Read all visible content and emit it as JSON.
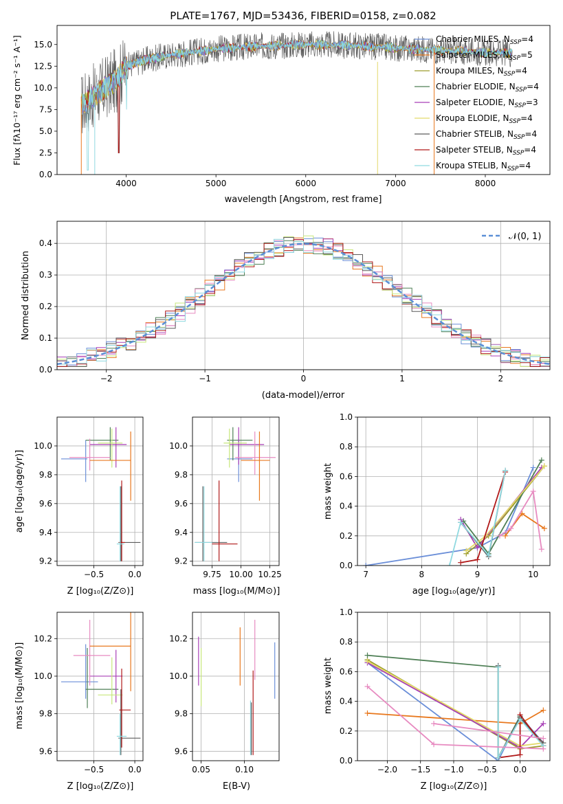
{
  "figure": {
    "title": "PLATE=1767, MJD=53436, FIBERID=0158, z=0.082"
  },
  "colors": [
    "#6a8ed8",
    "#e8771c",
    "#9a9a2a",
    "#4e7f55",
    "#a83fb6",
    "#e3d96a",
    "#5a5a5a",
    "#b01818",
    "#8fd9e0",
    "#e78ac0",
    "#c7e77b"
  ],
  "chart_data": [
    {
      "type": "line",
      "id": "spectrum",
      "title": "PLATE=1767, MJD=53436, FIBERID=0158, z=0.082",
      "xlabel": "wavelength [Angstrom, rest frame]",
      "ylabel": "Flux [fλ10⁻¹⁷ erg cm⁻² s⁻¹ A⁻¹]",
      "xlim": [
        3230,
        8720
      ],
      "ylim": [
        0,
        17.2
      ],
      "xticks": [
        4000,
        5000,
        6000,
        7000,
        8000
      ],
      "yticks": [
        0.0,
        2.5,
        5.0,
        7.5,
        10.0,
        12.5,
        15.0
      ],
      "grid": false,
      "legend_position": "right",
      "legend": [
        {
          "label": "Chabrier MILES, N_SSP=4",
          "color": "#6a8ed8"
        },
        {
          "label": "Salpeter MILES, N_SSP=5",
          "color": "#e8771c"
        },
        {
          "label": "Kroupa MILES, N_SSP=4",
          "color": "#9a9a2a"
        },
        {
          "label": "Chabrier ELODIE, N_SSP=4",
          "color": "#4e7f55"
        },
        {
          "label": "Salpeter ELODIE, N_SSP=3",
          "color": "#a83fb6"
        },
        {
          "label": "Kroupa ELODIE, N_SSP=4",
          "color": "#e3d96a"
        },
        {
          "label": "Chabrier STELIB, N_SSP=4",
          "color": "#5a5a5a"
        },
        {
          "label": "Salpeter STELIB, N_SSP=4",
          "color": "#b01818"
        },
        {
          "label": "Kroupa STELIB, N_SSP=4",
          "color": "#8fd9e0"
        }
      ],
      "continuum": [
        [
          3500,
          8.0
        ],
        [
          3700,
          9.5
        ],
        [
          3900,
          11.0
        ],
        [
          4000,
          12.5
        ],
        [
          4200,
          13.2
        ],
        [
          4500,
          13.8
        ],
        [
          5000,
          14.5
        ],
        [
          5500,
          14.8
        ],
        [
          6000,
          15.0
        ],
        [
          6500,
          14.9
        ],
        [
          7000,
          14.6
        ],
        [
          7200,
          14.5
        ],
        [
          7500,
          14.3
        ],
        [
          8000,
          14.1
        ],
        [
          8300,
          14.0
        ]
      ]
    },
    {
      "type": "histogram",
      "id": "residuals",
      "xlabel": "(data-model)/error",
      "ylabel": "Normed distribution",
      "xlim": [
        -2.5,
        2.5
      ],
      "ylim": [
        0,
        0.47
      ],
      "xticks": [
        -2,
        -1,
        0,
        1,
        2
      ],
      "yticks": [
        0.0,
        0.1,
        0.2,
        0.3,
        0.4
      ],
      "grid": true,
      "legend_position": "upper right",
      "legend": [
        {
          "label": "𝒩(0, 1)",
          "color": "#5b8fd6",
          "style": "dashed"
        }
      ],
      "bin_width": 0.1,
      "reference_curve": {
        "type": "gaussian",
        "mean": 0,
        "sigma": 1
      }
    },
    {
      "type": "scatter",
      "id": "age_vs_Z",
      "xlabel": "Z [log₁₀(Z/Z⊙)]",
      "ylabel": "age  [log₁₀(age/yr)]",
      "xlim": [
        -0.95,
        0.1
      ],
      "ylim": [
        9.17,
        10.2
      ],
      "xticks": [
        -0.5,
        0.0
      ],
      "yticks": [
        9.2,
        9.4,
        9.6,
        9.8,
        10.0
      ],
      "grid": true,
      "crosses": [
        {
          "x": [
            -0.9,
            -0.58
          ],
          "y": [
            9.91,
            9.91
          ],
          "vx": -0.6,
          "vy": [
            9.75,
            10.04
          ],
          "c": "#6a8ed8"
        },
        {
          "x": [
            -0.6,
            -0.2
          ],
          "y": [
            10.04,
            10.04
          ],
          "vx": -0.3,
          "vy": [
            9.9,
            10.13
          ],
          "c": "#4e7f55"
        },
        {
          "x": [
            -0.55,
            -0.1
          ],
          "y": [
            10.01,
            10.01
          ],
          "vx": -0.23,
          "vy": [
            9.85,
            10.13
          ],
          "c": "#a83fb6"
        },
        {
          "x": [
            -0.8,
            -0.3
          ],
          "y": [
            9.92,
            9.92
          ],
          "vx": -0.55,
          "vy": [
            9.83,
            10.05
          ],
          "c": "#e78ac0"
        },
        {
          "x": [
            -0.45,
            -0.15
          ],
          "y": [
            10.02,
            10.02
          ],
          "vx": -0.28,
          "vy": [
            9.85,
            10.12
          ],
          "c": "#c7e77b"
        },
        {
          "x": [
            -0.55,
            -0.05
          ],
          "y": [
            9.9,
            9.9
          ],
          "vx": -0.05,
          "vy": [
            9.62,
            10.1
          ],
          "c": "#e8771c"
        },
        {
          "x": [
            -0.2,
            0.07
          ],
          "y": [
            9.33,
            9.33
          ],
          "vx": -0.17,
          "vy": [
            9.2,
            9.72
          ],
          "c": "#5a5a5a"
        },
        {
          "x": [
            -0.19,
            -0.12
          ],
          "y": [
            9.33,
            9.33
          ],
          "vx": -0.16,
          "vy": [
            9.2,
            9.76
          ],
          "c": "#b01818"
        },
        {
          "x": [
            -0.22,
            -0.13
          ],
          "y": [
            9.32,
            9.32
          ],
          "vx": -0.18,
          "vy": [
            9.2,
            9.72
          ],
          "c": "#8fd9e0"
        }
      ]
    },
    {
      "type": "scatter",
      "id": "age_vs_mass",
      "xlabel": "mass [log₁₀(M/M⊙)]",
      "ylabel": "",
      "xlim": [
        9.58,
        10.33
      ],
      "ylim": [
        9.17,
        10.2
      ],
      "xticks": [
        9.75,
        10.0,
        10.25
      ],
      "yticks": [
        9.2,
        9.4,
        9.6,
        9.8,
        10.0
      ],
      "grid": true,
      "crosses": [
        {
          "x": [
            9.88,
            10.1
          ],
          "y": [
            9.91,
            9.91
          ],
          "vx": 9.98,
          "vy": [
            9.75,
            10.05
          ],
          "c": "#6a8ed8"
        },
        {
          "x": [
            9.88,
            10.1
          ],
          "y": [
            10.04,
            10.04
          ],
          "vx": 9.93,
          "vy": [
            9.9,
            10.13
          ],
          "c": "#4e7f55"
        },
        {
          "x": [
            9.9,
            10.2
          ],
          "y": [
            10.01,
            10.01
          ],
          "vx": 9.98,
          "vy": [
            9.87,
            10.13
          ],
          "c": "#a83fb6"
        },
        {
          "x": [
            9.95,
            10.3
          ],
          "y": [
            9.92,
            9.92
          ],
          "vx": 10.12,
          "vy": [
            9.8,
            10.1
          ],
          "c": "#e78ac0"
        },
        {
          "x": [
            9.85,
            10.05
          ],
          "y": [
            10.02,
            10.02
          ],
          "vx": 9.9,
          "vy": [
            9.85,
            10.12
          ],
          "c": "#c7e77b"
        },
        {
          "x": [
            10.0,
            10.25
          ],
          "y": [
            9.9,
            9.9
          ],
          "vx": 10.16,
          "vy": [
            9.62,
            10.1
          ],
          "c": "#e8771c"
        },
        {
          "x": [
            9.6,
            9.88
          ],
          "y": [
            9.33,
            9.33
          ],
          "vx": 9.67,
          "vy": [
            9.2,
            9.72
          ],
          "c": "#5a5a5a"
        },
        {
          "x": [
            9.75,
            9.97
          ],
          "y": [
            9.32,
            9.32
          ],
          "vx": 9.81,
          "vy": [
            9.2,
            9.76
          ],
          "c": "#b01818"
        },
        {
          "x": [
            9.6,
            9.75
          ],
          "y": [
            9.33,
            9.33
          ],
          "vx": 9.68,
          "vy": [
            9.2,
            9.72
          ],
          "c": "#8fd9e0"
        }
      ]
    },
    {
      "type": "line",
      "id": "weight_vs_age",
      "xlabel": "age  [log₁₀(age/yr)]",
      "ylabel": "mass weight",
      "xlim": [
        6.85,
        10.3
      ],
      "ylim": [
        0,
        1.0
      ],
      "xticks": [
        7,
        8,
        9,
        10
      ],
      "yticks": [
        0.0,
        0.2,
        0.4,
        0.6,
        0.8,
        1.0
      ],
      "grid": true,
      "series": [
        {
          "c": "#6a8ed8",
          "x": [
            7.0,
            9.0,
            9.5,
            10.0
          ],
          "y": [
            0.0,
            0.12,
            0.22,
            0.66
          ]
        },
        {
          "c": "#e8771c",
          "x": [
            9.5,
            9.8,
            10.2
          ],
          "y": [
            0.2,
            0.35,
            0.25
          ]
        },
        {
          "c": "#9a9a2a",
          "x": [
            8.8,
            9.2,
            10.2
          ],
          "y": [
            0.08,
            0.2,
            0.67
          ]
        },
        {
          "c": "#4e7f55",
          "x": [
            8.75,
            9.2,
            10.15
          ],
          "y": [
            0.3,
            0.08,
            0.71
          ]
        },
        {
          "c": "#a83fb6",
          "x": [
            8.7,
            9.0,
            10.15
          ],
          "y": [
            0.31,
            0.12,
            0.66
          ]
        },
        {
          "c": "#e3d96a",
          "x": [
            8.8,
            9.15,
            10.2
          ],
          "y": [
            0.1,
            0.2,
            0.67
          ]
        },
        {
          "c": "#5a5a5a",
          "x": [
            8.7,
            9.2,
            9.5
          ],
          "y": [
            0.29,
            0.06,
            0.64
          ]
        },
        {
          "c": "#b01818",
          "x": [
            8.7,
            9.0,
            9.5
          ],
          "y": [
            0.02,
            0.04,
            0.63
          ]
        },
        {
          "c": "#8fd9e0",
          "x": [
            8.5,
            8.7,
            9.2,
            9.5
          ],
          "y": [
            0.0,
            0.29,
            0.07,
            0.64
          ]
        },
        {
          "c": "#e78ac0",
          "x": [
            9.4,
            9.6,
            10.0,
            10.15
          ],
          "y": [
            0.2,
            0.25,
            0.5,
            0.11
          ]
        }
      ]
    },
    {
      "type": "scatter",
      "id": "mass_vs_Z",
      "xlabel": "Z [log₁₀(Z/Z⊙)]",
      "ylabel": "mass [log₁₀(M/M⊙)]",
      "xlim": [
        -0.95,
        0.1
      ],
      "ylim": [
        9.55,
        10.34
      ],
      "xticks": [
        -0.5,
        0.0
      ],
      "yticks": [
        9.6,
        9.8,
        10.0,
        10.2
      ],
      "grid": true,
      "crosses": [
        {
          "x": [
            -0.9,
            -0.45
          ],
          "y": [
            9.97,
            9.97
          ],
          "vx": -0.6,
          "vy": [
            9.88,
            10.17
          ],
          "c": "#6a8ed8"
        },
        {
          "x": [
            -0.6,
            -0.2
          ],
          "y": [
            9.93,
            9.93
          ],
          "vx": -0.58,
          "vy": [
            9.83,
            10.15
          ],
          "c": "#4e7f55"
        },
        {
          "x": [
            -0.55,
            -0.15
          ],
          "y": [
            10.0,
            10.0
          ],
          "vx": -0.23,
          "vy": [
            9.86,
            10.14
          ],
          "c": "#a83fb6"
        },
        {
          "x": [
            -0.75,
            -0.3
          ],
          "y": [
            10.11,
            10.11
          ],
          "vx": -0.55,
          "vy": [
            9.95,
            10.3
          ],
          "c": "#e78ac0"
        },
        {
          "x": [
            -0.45,
            -0.15
          ],
          "y": [
            9.9,
            9.9
          ],
          "vx": -0.28,
          "vy": [
            9.85,
            10.1
          ],
          "c": "#c7e77b"
        },
        {
          "x": [
            -0.55,
            -0.05
          ],
          "y": [
            10.16,
            10.16
          ],
          "vx": -0.05,
          "vy": [
            9.92,
            10.35
          ],
          "c": "#e8771c"
        },
        {
          "x": [
            -0.2,
            0.07
          ],
          "y": [
            9.67,
            9.67
          ],
          "vx": -0.17,
          "vy": [
            9.58,
            9.93
          ],
          "c": "#5a5a5a"
        },
        {
          "x": [
            -0.19,
            -0.05
          ],
          "y": [
            9.82,
            9.82
          ],
          "vx": -0.16,
          "vy": [
            9.62,
            10.04
          ],
          "c": "#b01818"
        },
        {
          "x": [
            -0.22,
            -0.1
          ],
          "y": [
            9.68,
            9.68
          ],
          "vx": -0.18,
          "vy": [
            9.58,
            9.8
          ],
          "c": "#8fd9e0"
        }
      ]
    },
    {
      "type": "scatter",
      "id": "mass_vs_EBV",
      "xlabel": "E(B-V)",
      "ylabel": "",
      "xlim": [
        0.04,
        0.14
      ],
      "ylim": [
        9.55,
        10.34
      ],
      "xticks": [
        0.05,
        0.1
      ],
      "yticks": [
        9.6,
        9.8,
        10.0,
        10.2
      ],
      "grid": true,
      "crosses": [
        {
          "x": [
            0.135,
            0.135
          ],
          "y": [
            9.97,
            9.97
          ],
          "vx": 0.135,
          "vy": [
            9.88,
            10.18
          ],
          "c": "#6a8ed8"
        },
        {
          "x": [
            0.095,
            0.095
          ],
          "y": [
            10.1,
            10.1
          ],
          "vx": 0.095,
          "vy": [
            9.95,
            10.26
          ],
          "c": "#e8771c"
        },
        {
          "x": [
            0.047,
            0.047
          ],
          "y": [
            10.08,
            10.08
          ],
          "vx": 0.047,
          "vy": [
            9.95,
            10.21
          ],
          "c": "#a83fb6"
        },
        {
          "x": [
            0.05,
            0.05
          ],
          "y": [
            9.98,
            9.98
          ],
          "vx": 0.05,
          "vy": [
            9.84,
            10.15
          ],
          "c": "#c7e77b"
        },
        {
          "x": [
            0.112,
            0.112
          ],
          "y": [
            10.14,
            10.14
          ],
          "vx": 0.112,
          "vy": [
            9.98,
            10.3
          ],
          "c": "#e78ac0"
        },
        {
          "x": [
            0.11,
            0.11
          ],
          "y": [
            9.8,
            9.8
          ],
          "vx": 0.11,
          "vy": [
            9.58,
            10.03
          ],
          "c": "#b01818"
        },
        {
          "x": [
            0.107,
            0.107
          ],
          "y": [
            9.73,
            9.73
          ],
          "vx": 0.107,
          "vy": [
            9.58,
            9.87
          ],
          "c": "#8fd9e0"
        },
        {
          "x": [
            0.108,
            0.108
          ],
          "y": [
            9.72,
            9.72
          ],
          "vx": 0.108,
          "vy": [
            9.58,
            9.86
          ],
          "c": "#5a5a5a"
        }
      ]
    },
    {
      "type": "line",
      "id": "weight_vs_Z",
      "xlabel": "Z [log₁₀(Z/Z⊙)]",
      "ylabel": "mass weight",
      "xlim": [
        -2.45,
        0.45
      ],
      "ylim": [
        0,
        1.0
      ],
      "xticks": [
        -2.0,
        -1.5,
        -1.0,
        -0.5,
        0.0
      ],
      "yticks": [
        0.0,
        0.2,
        0.4,
        0.6,
        0.8,
        1.0
      ],
      "grid": true,
      "series": [
        {
          "c": "#6a8ed8",
          "x": [
            -2.3,
            -0.33,
            0.0,
            0.35
          ],
          "y": [
            0.66,
            0.0,
            0.3,
            0.12
          ]
        },
        {
          "c": "#e8771c",
          "x": [
            -2.3,
            0.0,
            0.35
          ],
          "y": [
            0.32,
            0.25,
            0.34
          ]
        },
        {
          "c": "#9a9a2a",
          "x": [
            -2.3,
            0.0,
            0.35
          ],
          "y": [
            0.68,
            0.08,
            0.1
          ]
        },
        {
          "c": "#4e7f55",
          "x": [
            -2.3,
            -0.33,
            -0.33,
            0.0,
            0.35
          ],
          "y": [
            0.71,
            0.63,
            0.02,
            0.3,
            0.1
          ]
        },
        {
          "c": "#a83fb6",
          "x": [
            -2.3,
            0.0,
            0.35
          ],
          "y": [
            0.66,
            0.09,
            0.25
          ]
        },
        {
          "c": "#e3d96a",
          "x": [
            -2.3,
            0.0,
            0.35
          ],
          "y": [
            0.67,
            0.1,
            0.12
          ]
        },
        {
          "c": "#5a5a5a",
          "x": [
            -0.33,
            -0.33,
            0.0,
            0.35
          ],
          "y": [
            0.64,
            0.02,
            0.29,
            0.12
          ]
        },
        {
          "c": "#b01818",
          "x": [
            -0.33,
            0.0,
            0.0,
            0.35
          ],
          "y": [
            0.02,
            0.04,
            0.31,
            0.1
          ]
        },
        {
          "c": "#8fd9e0",
          "x": [
            -0.33,
            -0.33,
            0.0,
            0.35
          ],
          "y": [
            0.63,
            0.02,
            0.28,
            0.1
          ]
        },
        {
          "c": "#e78ac0",
          "x": [
            -2.3,
            -1.3,
            0.35
          ],
          "y": [
            0.5,
            0.11,
            0.08
          ]
        },
        {
          "c": "#e78ac0",
          "x": [
            -1.3,
            0.35
          ],
          "y": [
            0.25,
            0.15
          ]
        }
      ]
    }
  ]
}
